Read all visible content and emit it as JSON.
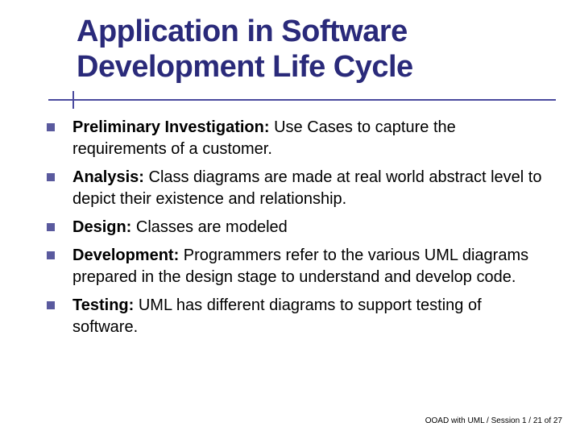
{
  "title_line1": "Application in Software",
  "title_line2": "Development Life Cycle",
  "colors": {
    "title_color": "#2a2a7a",
    "divider_color": "#4a4a9e",
    "bullet_color": "#5a5a9e",
    "body_text_color": "#000000",
    "background": "#ffffff"
  },
  "typography": {
    "title_fontsize": 38,
    "body_fontsize": 20,
    "footer_fontsize": 10,
    "title_weight": "bold"
  },
  "bullets": [
    {
      "label": "Preliminary Investigation:",
      "text": " Use Cases to capture the requirements of a customer."
    },
    {
      "label": "Analysis:",
      "text": " Class diagrams are made at real world abstract level to depict their existence and relationship."
    },
    {
      "label": "Design:",
      "text": " Classes are modeled"
    },
    {
      "label": "Development:",
      "text": " Programmers refer to the various UML diagrams prepared in the design stage to understand and develop code."
    },
    {
      "label": "Testing:",
      "text": " UML has different diagrams to support testing of software."
    }
  ],
  "footer": "OOAD with UML / Session 1 / 21 of 27"
}
